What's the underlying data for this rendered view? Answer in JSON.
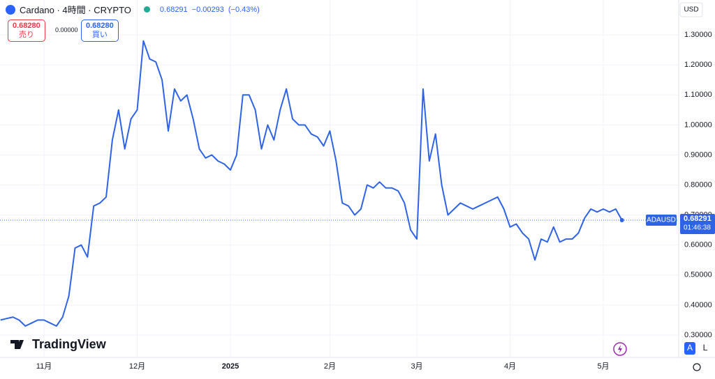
{
  "header": {
    "symbol": "Cardano · 4時間 · CRYPTO",
    "price": "0.68291",
    "change": "−0.00293",
    "change_pct": "(−0.43%)",
    "sell_price": "0.68280",
    "sell_label": "売り",
    "spread": "0.00000",
    "buy_price": "0.68280",
    "buy_label": "買い",
    "currency": "USD",
    "logo": "TradingView",
    "scale_auto": "A",
    "scale_log": "L"
  },
  "chart_data": {
    "type": "line",
    "categories": [
      null,
      null,
      null,
      null,
      null,
      null,
      null,
      "11月",
      null,
      null,
      null,
      null,
      null,
      null,
      null,
      null,
      null,
      null,
      null,
      null,
      null,
      null,
      "12月",
      null,
      null,
      null,
      null,
      null,
      null,
      null,
      null,
      null,
      null,
      null,
      null,
      null,
      null,
      "2025",
      null,
      null,
      null,
      null,
      null,
      null,
      null,
      null,
      null,
      null,
      null,
      null,
      null,
      null,
      null,
      "2月",
      null,
      null,
      null,
      null,
      null,
      null,
      null,
      null,
      null,
      null,
      null,
      null,
      null,
      "3月",
      null,
      null,
      null,
      null,
      null,
      null,
      null,
      null,
      null,
      null,
      null,
      null,
      null,
      null,
      "4月",
      null,
      null,
      null,
      null,
      null,
      null,
      null,
      null,
      null,
      null,
      null,
      null,
      null,
      null,
      "5月",
      null,
      null,
      null
    ],
    "series": [
      {
        "name": "ADAUSD",
        "color": "#2f63e6",
        "values": [
          0.35,
          0.355,
          0.36,
          0.35,
          0.33,
          0.34,
          0.35,
          0.35,
          0.34,
          0.33,
          0.36,
          0.43,
          0.59,
          0.6,
          0.56,
          0.73,
          0.74,
          0.76,
          0.95,
          1.05,
          0.92,
          1.02,
          1.05,
          1.28,
          1.22,
          1.21,
          1.15,
          0.98,
          1.12,
          1.08,
          1.1,
          1.02,
          0.92,
          0.89,
          0.9,
          0.88,
          0.87,
          0.85,
          0.9,
          1.1,
          1.1,
          1.05,
          0.92,
          1.0,
          0.95,
          1.05,
          1.12,
          1.02,
          1.0,
          1.0,
          0.97,
          0.96,
          0.93,
          0.98,
          0.88,
          0.74,
          0.73,
          0.7,
          0.72,
          0.8,
          0.79,
          0.81,
          0.79,
          0.79,
          0.78,
          0.74,
          0.65,
          0.62,
          1.12,
          0.88,
          0.97,
          0.8,
          0.7,
          0.72,
          0.74,
          0.73,
          0.72,
          0.73,
          0.74,
          0.75,
          0.76,
          0.72,
          0.66,
          0.67,
          0.64,
          0.62,
          0.55,
          0.62,
          0.61,
          0.66,
          0.61,
          0.62,
          0.62,
          0.64,
          0.69,
          0.72,
          0.71,
          0.72,
          0.71,
          0.72,
          0.68291
        ]
      }
    ],
    "last_price": 0.68291,
    "last_symbol": "ADAUSD",
    "countdown": "01:46:38",
    "ylim": [
      0.2256,
      1.4163
    ],
    "yticks": [
      {
        "value": 0.3,
        "label": "0.30000"
      },
      {
        "value": 0.4,
        "label": "0.40000"
      },
      {
        "value": 0.5,
        "label": "0.50000"
      },
      {
        "value": 0.6,
        "label": "0.60000"
      },
      {
        "value": 0.7,
        "label": "0.70000"
      },
      {
        "value": 0.8,
        "label": "0.80000"
      },
      {
        "value": 0.9,
        "label": "0.90000"
      },
      {
        "value": 1.0,
        "label": "1.00000"
      },
      {
        "value": 1.1,
        "label": "1.10000"
      },
      {
        "value": 1.2,
        "label": "1.20000"
      },
      {
        "value": 1.3,
        "label": "1.30000"
      }
    ],
    "grid": true
  }
}
